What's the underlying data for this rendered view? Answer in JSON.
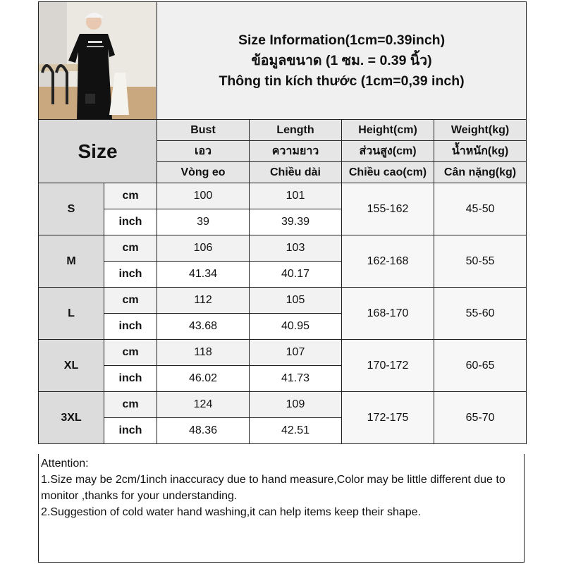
{
  "header": {
    "title_lines": [
      "Size Information(1cm=0.39inch)",
      "ข้อมูลขนาด (1 ซม. = 0.39 นิ้ว)",
      "Thông tin kích thước (1cm=0,39 inch)"
    ],
    "photo_alt": "model-photo"
  },
  "columns": {
    "size_label": "Size",
    "headers": [
      [
        "Bust",
        "เอว",
        "Vòng eo"
      ],
      [
        "Length",
        "ความยาว",
        "Chiều dài"
      ],
      [
        "Height(cm)",
        "ส่วนสูง(cm)",
        "Chiều cao(cm)"
      ],
      [
        "Weight(kg)",
        "น้ำหนัก(kg)",
        "Cân nặng(kg)"
      ]
    ]
  },
  "units": {
    "cm": "cm",
    "inch": "inch"
  },
  "rows": [
    {
      "size": "S",
      "bust_cm": "100",
      "length_cm": "101",
      "bust_inch": "39",
      "length_inch": "39.39",
      "height": "155-162",
      "weight": "45-50"
    },
    {
      "size": "M",
      "bust_cm": "106",
      "length_cm": "103",
      "bust_inch": "41.34",
      "length_inch": "40.17",
      "height": "162-168",
      "weight": "50-55"
    },
    {
      "size": "L",
      "bust_cm": "112",
      "length_cm": "105",
      "bust_inch": "43.68",
      "length_inch": "40.95",
      "height": "168-170",
      "weight": "55-60"
    },
    {
      "size": "XL",
      "bust_cm": "118",
      "length_cm": "107",
      "bust_inch": "46.02",
      "length_inch": "41.73",
      "height": "170-172",
      "weight": "60-65"
    },
    {
      "size": "3XL",
      "bust_cm": "124",
      "length_cm": "109",
      "bust_inch": "48.36",
      "length_inch": "42.51",
      "height": "172-175",
      "weight": "65-70"
    }
  ],
  "attention": {
    "title": "Attention:",
    "notes": [
      "1.Size may be 2cm/1inch inaccuracy due to hand measure,Color may be little different due to monitor ,thanks for your understanding.",
      "2.Suggestion of cold water hand washing,it can help items keep their shape."
    ]
  }
}
